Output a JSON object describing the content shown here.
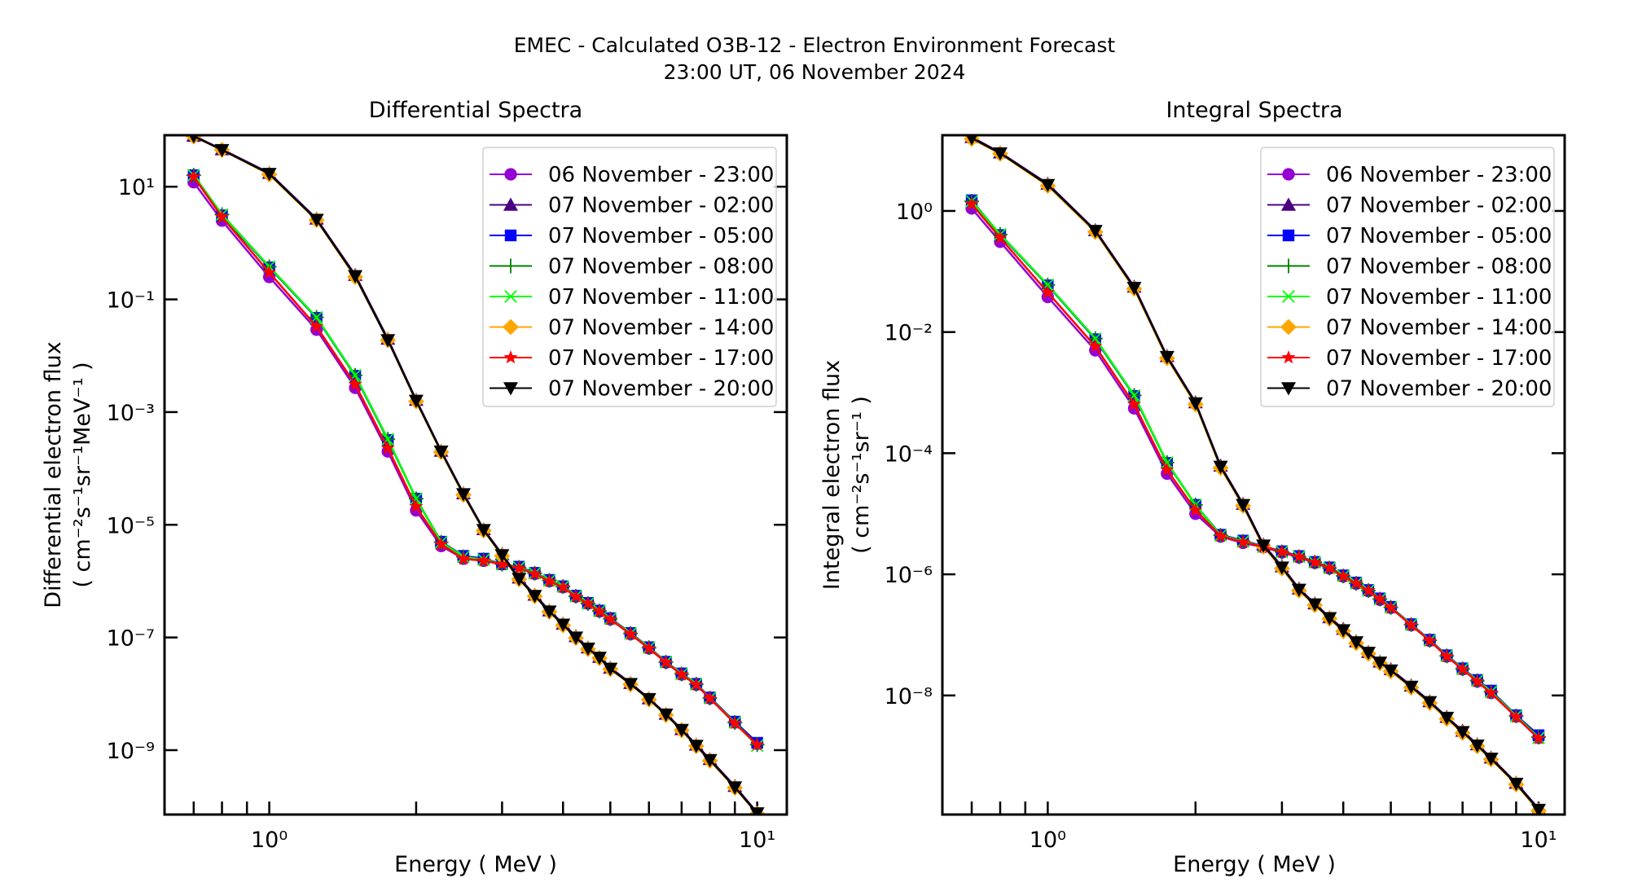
{
  "figure": {
    "title_line1": "EMEC - Calculated O3B-12 - Electron Environment Forecast",
    "title_line2": "23:00 UT, 06 November 2024"
  },
  "series_style": [
    {
      "name": "06 November - 23:00",
      "color": "#9400D3",
      "marker": "circle"
    },
    {
      "name": "07 November - 02:00",
      "color": "#4B0082",
      "marker": "triangle-up"
    },
    {
      "name": "07 November - 05:00",
      "color": "#0000FF",
      "marker": "square"
    },
    {
      "name": "07 November - 08:00",
      "color": "#008000",
      "marker": "plus"
    },
    {
      "name": "07 November - 11:00",
      "color": "#00FF00",
      "marker": "x"
    },
    {
      "name": "07 November - 14:00",
      "color": "#FFA500",
      "marker": "diamond"
    },
    {
      "name": "07 November - 17:00",
      "color": "#FF0000",
      "marker": "star"
    },
    {
      "name": "07 November - 20:00",
      "color": "#000000",
      "marker": "triangle-down"
    }
  ],
  "chart_data": [
    {
      "type": "line",
      "title": "Differential Spectra",
      "xlabel": "Energy ( MeV )",
      "ylabel_line1": "Differential electron flux",
      "ylabel_line2": "( cm⁻²s⁻¹sr⁻¹MeV⁻¹ )",
      "xscale": "log",
      "yscale": "log",
      "xlim": [
        0.61,
        11.5
      ],
      "ylim": [
        7.2e-11,
        82
      ],
      "xticks": [
        {
          "value": 1,
          "label": "10⁰"
        },
        {
          "value": 10,
          "label": "10¹"
        }
      ],
      "yticks": [
        {
          "value": 10,
          "label": "10¹"
        },
        {
          "value": 0.1,
          "label": "10⁻¹"
        },
        {
          "value": 0.001,
          "label": "10⁻³"
        },
        {
          "value": 1e-05,
          "label": "10⁻⁵"
        },
        {
          "value": 1e-07,
          "label": "10⁻⁷"
        },
        {
          "value": 1e-09,
          "label": "10⁻⁹"
        }
      ],
      "grid": false,
      "legend": "top-right",
      "x": [
        0.7,
        0.8,
        1.0,
        1.25,
        1.5,
        1.75,
        2.0,
        2.25,
        2.5,
        2.75,
        3.0,
        3.25,
        3.5,
        3.75,
        4.0,
        4.25,
        4.5,
        4.75,
        5.0,
        5.5,
        6.0,
        6.5,
        7.0,
        7.5,
        8.0,
        9.0,
        10.0
      ],
      "series": [
        {
          "name": "06 November - 23:00",
          "values": [
            12,
            2.5,
            0.25,
            0.029,
            0.0027,
            0.0002,
            1.8e-05,
            4.2e-06,
            2.5e-06,
            2.3e-06,
            2e-06,
            1.7e-06,
            1.35e-06,
            1e-06,
            7.8e-07,
            5.3e-07,
            4e-07,
            2.9e-07,
            2.1e-07,
            1.15e-07,
            6.4e-08,
            3.6e-08,
            2.2e-08,
            1.45e-08,
            8.3e-09,
            3.1e-09,
            1.3e-09
          ]
        },
        {
          "name": "07 November - 02:00",
          "values": [
            80,
            46,
            17.5,
            2.7,
            0.27,
            0.02,
            0.00165,
            0.000205,
            3.6e-05,
            8.3e-06,
            3e-06,
            1.15e-06,
            5.7e-07,
            3e-07,
            1.75e-07,
            1.05e-07,
            6.6e-08,
            4.5e-08,
            2.9e-08,
            1.55e-08,
            8.3e-09,
            4.4e-09,
            2.35e-09,
            1.25e-09,
            6.9e-10,
            2.3e-10,
            7.8e-11
          ]
        },
        {
          "name": "07 November - 05:00",
          "values": [
            16,
            3.1,
            0.37,
            0.047,
            0.0044,
            0.00032,
            2.9e-05,
            5e-06,
            2.8e-06,
            2.5e-06,
            2e-06,
            1.8e-06,
            1.4e-06,
            1.05e-06,
            8.1e-07,
            5.5e-07,
            4.1e-07,
            3e-07,
            2.2e-07,
            1.2e-07,
            6.7e-08,
            3.7e-08,
            2.3e-08,
            1.5e-08,
            8.6e-09,
            3.2e-09,
            1.35e-09
          ]
        },
        {
          "name": "07 November - 08:00",
          "values": [
            16,
            3.2,
            0.38,
            0.048,
            0.0045,
            0.00033,
            2.9e-05,
            4.9e-06,
            2.7e-06,
            2.4e-06,
            2e-06,
            1.75e-06,
            1.38e-06,
            1.03e-06,
            8e-07,
            5.4e-07,
            4e-07,
            2.95e-07,
            2.15e-07,
            1.18e-07,
            6.6e-08,
            3.65e-08,
            2.25e-08,
            1.48e-08,
            8.4e-09,
            3.1e-09,
            1.25e-09
          ]
        },
        {
          "name": "07 November - 11:00",
          "values": [
            16,
            3.2,
            0.38,
            0.048,
            0.0045,
            0.00033,
            2.9e-05,
            4.9e-06,
            2.7e-06,
            2.4e-06,
            2e-06,
            1.75e-06,
            1.38e-06,
            1.03e-06,
            8e-07,
            5.4e-07,
            4e-07,
            2.95e-07,
            2.15e-07,
            1.18e-07,
            6.6e-08,
            3.65e-08,
            2.25e-08,
            1.48e-08,
            8.4e-09,
            3.1e-09,
            1.2e-09
          ]
        },
        {
          "name": "07 November - 14:00",
          "values": [
            78,
            45,
            16.5,
            2.55,
            0.25,
            0.019,
            0.00155,
            0.000195,
            3.4e-05,
            7.9e-06,
            2.8e-06,
            1.08e-06,
            5.4e-07,
            2.85e-07,
            1.65e-07,
            9.8e-08,
            6.2e-08,
            4.3e-08,
            2.75e-08,
            1.47e-08,
            7.9e-09,
            4.2e-09,
            2.25e-09,
            1.18e-09,
            6.5e-10,
            2.15e-10,
            7.4e-11
          ]
        },
        {
          "name": "07 November - 17:00",
          "values": [
            15,
            2.9,
            0.3,
            0.033,
            0.0031,
            0.00023,
            2.1e-05,
            4.5e-06,
            2.5e-06,
            2.3e-06,
            2e-06,
            1.7e-06,
            1.35e-06,
            1e-06,
            7.8e-07,
            5.3e-07,
            4e-07,
            2.9e-07,
            2.1e-07,
            1.15e-07,
            6.4e-08,
            3.6e-08,
            2.2e-08,
            1.45e-08,
            8.3e-09,
            3e-09,
            1.25e-09
          ]
        },
        {
          "name": "07 November - 20:00",
          "values": [
            79,
            45,
            17,
            2.6,
            0.26,
            0.019,
            0.0016,
            0.0002,
            3.5e-05,
            8.1e-06,
            2.9e-06,
            1.1e-06,
            5.5e-07,
            2.9e-07,
            1.7e-07,
            1e-07,
            6.4e-08,
            4.4e-08,
            2.8e-08,
            1.5e-08,
            8.1e-09,
            4.3e-09,
            2.3e-09,
            1.2e-09,
            6.7e-10,
            2.2e-10,
            7.6e-11
          ]
        }
      ]
    },
    {
      "type": "line",
      "title": "Integral Spectra",
      "xlabel": "Energy ( MeV )",
      "ylabel_line1": "Integral electron flux",
      "ylabel_line2": "( cm⁻²s⁻¹sr⁻¹ )",
      "xscale": "log",
      "yscale": "log",
      "xlim": [
        0.61,
        11.3
      ],
      "ylim": [
        1.08e-10,
        17.8
      ],
      "xticks": [
        {
          "value": 1,
          "label": "10⁰"
        },
        {
          "value": 10,
          "label": "10¹"
        }
      ],
      "yticks": [
        {
          "value": 1,
          "label": "10⁰"
        },
        {
          "value": 0.01,
          "label": "10⁻²"
        },
        {
          "value": 0.0001,
          "label": "10⁻⁴"
        },
        {
          "value": 1e-06,
          "label": "10⁻⁶"
        },
        {
          "value": 1e-08,
          "label": "10⁻⁸"
        }
      ],
      "grid": false,
      "legend": "top-right",
      "x": [
        0.7,
        0.8,
        1.0,
        1.25,
        1.5,
        1.75,
        2.0,
        2.25,
        2.5,
        2.75,
        3.0,
        3.25,
        3.5,
        3.75,
        4.0,
        4.25,
        4.5,
        4.75,
        5.0,
        5.5,
        6.0,
        6.5,
        7.0,
        7.5,
        8.0,
        9.0,
        10.0
      ],
      "series": [
        {
          "name": "06 November - 23:00",
          "values": [
            1.1,
            0.31,
            0.038,
            0.005,
            0.00055,
            4.6e-05,
            1e-05,
            4.2e-06,
            3.3e-06,
            2.8e-06,
            2.3e-06,
            1.9e-06,
            1.55e-06,
            1.25e-06,
            9.2e-07,
            7e-07,
            5.3e-07,
            3.8e-07,
            2.8e-07,
            1.45e-07,
            8e-08,
            4.4e-08,
            2.7e-08,
            1.7e-08,
            1.1e-08,
            4.5e-09,
            2e-09
          ]
        },
        {
          "name": "07 November - 02:00",
          "values": [
            16.5,
            9.2,
            2.8,
            0.48,
            0.056,
            0.004,
            0.00069,
            6.2e-05,
            1.45e-05,
            3.1e-06,
            1.35e-06,
            5.8e-07,
            3.3e-07,
            1.95e-07,
            1.25e-07,
            7.8e-08,
            5.2e-08,
            3.6e-08,
            2.7e-08,
            1.45e-08,
            8e-09,
            4.4e-09,
            2.6e-09,
            1.55e-09,
            9.4e-10,
            3.6e-10,
            1.35e-10
          ]
        },
        {
          "name": "07 November - 05:00",
          "values": [
            1.5,
            0.4,
            0.059,
            0.0076,
            0.00088,
            6.9e-05,
            1.4e-05,
            4.5e-06,
            3.6e-06,
            2.9e-06,
            2.4e-06,
            2e-06,
            1.6e-06,
            1.3e-06,
            9.6e-07,
            7.3e-07,
            5.5e-07,
            4e-07,
            2.9e-07,
            1.5e-07,
            8.3e-08,
            4.6e-08,
            2.8e-08,
            1.8e-08,
            1.2e-08,
            4.7e-09,
            2.2e-09
          ]
        },
        {
          "name": "07 November - 08:00",
          "values": [
            1.45,
            0.41,
            0.06,
            0.0078,
            0.0009,
            7e-05,
            1.4e-05,
            4.4e-06,
            3.5e-06,
            2.85e-06,
            2.35e-06,
            1.95e-06,
            1.58e-06,
            1.27e-06,
            9.4e-07,
            7.1e-07,
            5.4e-07,
            3.9e-07,
            2.85e-07,
            1.48e-07,
            8.1e-08,
            4.5e-08,
            2.75e-08,
            1.75e-08,
            1.15e-08,
            4.6e-09,
            2.05e-09
          ]
        },
        {
          "name": "07 November - 11:00",
          "values": [
            1.45,
            0.41,
            0.06,
            0.0078,
            0.0009,
            7e-05,
            1.4e-05,
            4.4e-06,
            3.5e-06,
            2.85e-06,
            2.35e-06,
            1.95e-06,
            1.58e-06,
            1.27e-06,
            9.4e-07,
            7.1e-07,
            5.4e-07,
            3.9e-07,
            2.85e-07,
            1.48e-07,
            8.1e-08,
            4.5e-08,
            2.75e-08,
            1.75e-08,
            1.15e-08,
            4.6e-09,
            2e-09
          ]
        },
        {
          "name": "07 November - 14:00",
          "values": [
            15.5,
            8.8,
            2.6,
            0.45,
            0.052,
            0.0037,
            0.00064,
            5.7e-05,
            1.35e-05,
            2.9e-06,
            1.25e-06,
            5.4e-07,
            3.1e-07,
            1.85e-07,
            1.15e-07,
            7.3e-08,
            4.9e-08,
            3.4e-08,
            2.5e-08,
            1.35e-08,
            7.5e-09,
            4.1e-09,
            2.4e-09,
            1.45e-09,
            8.8e-10,
            3.4e-10,
            1.25e-10
          ]
        },
        {
          "name": "07 November - 17:00",
          "values": [
            1.3,
            0.36,
            0.045,
            0.0058,
            0.00064,
            5.3e-05,
            1.15e-05,
            4.3e-06,
            3.4e-06,
            2.85e-06,
            2.35e-06,
            1.95e-06,
            1.58e-06,
            1.27e-06,
            9.3e-07,
            7.1e-07,
            5.4e-07,
            3.9e-07,
            2.8e-07,
            1.45e-07,
            8e-08,
            4.4e-08,
            2.7e-08,
            1.7e-08,
            1.1e-08,
            4.4e-09,
            1.95e-09
          ]
        },
        {
          "name": "07 November - 20:00",
          "values": [
            16,
            9.0,
            2.7,
            0.47,
            0.054,
            0.0039,
            0.00067,
            6e-05,
            1.4e-05,
            3e-06,
            1.3e-06,
            5.6e-07,
            3.2e-07,
            1.9e-07,
            1.2e-07,
            7.6e-08,
            5.1e-08,
            3.5e-08,
            2.6e-08,
            1.4e-08,
            7.8e-09,
            4.3e-09,
            2.5e-09,
            1.5e-09,
            9.1e-10,
            3.5e-10,
            1.3e-10
          ]
        }
      ]
    }
  ]
}
